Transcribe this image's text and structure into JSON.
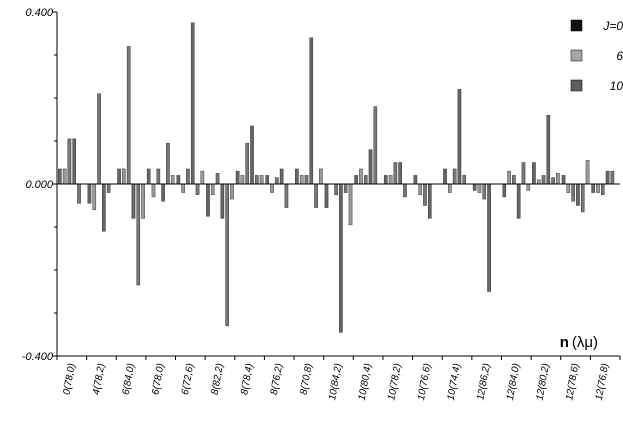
{
  "chart_data": {
    "type": "bar",
    "title": "",
    "xlabel": "n (λμ)",
    "xlabel_parts": {
      "bold": "n",
      "normal": "(λμ)"
    },
    "ylabel": "",
    "ylim": [
      -0.4,
      0.4
    ],
    "yticks": [
      "-0.400",
      "0.000",
      "0.400"
    ],
    "grid": false,
    "legend_position": "top-right",
    "legend_labels": [
      "J=0",
      "6",
      "10"
    ],
    "colors": [
      "#111111",
      "#a6a6a6",
      "#5e5e5e"
    ],
    "categories": [
      "0(78,0)",
      "4(78,2)",
      "6(84,0)",
      "6(78,0)",
      "6(72,6)",
      "8(82,2)",
      "8(78,4)",
      "8(76,2)",
      "8(70,8)",
      "10(84,2)",
      "10(80,4)",
      "10(78,2)",
      "10(76,6)",
      "10(74,4)",
      "12(86,2)",
      "12(84,0)",
      "12(80,2)",
      "12(78,6)",
      "12(76,8)"
    ],
    "series": [
      {
        "name": "J=0",
        "values": [
          0.035,
          -0.045,
          0.035,
          0.035,
          0.02,
          -0.075,
          0.03,
          0.02,
          0.035,
          -0.055,
          0.02,
          0.02,
          0.02,
          0.035,
          -0.015,
          -0.03,
          0.05,
          0.02,
          -0.02
        ]
      },
      {
        "name": "6",
        "values": [
          0.035,
          -0.06,
          0.035,
          -0.03,
          -0.02,
          -0.025,
          0.02,
          -0.02,
          0.02,
          0.0,
          0.035,
          0.02,
          -0.025,
          -0.02,
          -0.02,
          0.03,
          0.01,
          -0.02,
          -0.02
        ]
      },
      {
        "name": "10",
        "values": [
          0.105,
          0.21,
          0.32,
          0.035,
          0.035,
          0.025,
          0.095,
          0.015,
          0.02,
          -0.025,
          0.02,
          0.05,
          -0.05,
          0.035,
          -0.035,
          0.02,
          0.02,
          -0.04,
          -0.025
        ]
      },
      {
        "name": "",
        "values": [
          0.105,
          -0.11,
          -0.08,
          -0.04,
          0.375,
          -0.08,
          0.135,
          0.035,
          0.34,
          -0.345,
          0.08,
          0.05,
          -0.08,
          0.22,
          -0.25,
          -0.08,
          0.16,
          -0.05,
          0.03
        ]
      },
      {
        "name": "",
        "values": [
          -0.045,
          -0.02,
          -0.235,
          0.095,
          -0.025,
          -0.33,
          0.02,
          -0.055,
          -0.055,
          -0.02,
          0.18,
          -0.03,
          0.0,
          0.02,
          0.0,
          0.05,
          0.015,
          -0.065,
          0.03
        ]
      },
      {
        "name": "",
        "values": [
          0.0,
          0.0,
          -0.08,
          0.02,
          0.03,
          -0.035,
          0.02,
          0.0,
          0.035,
          -0.095,
          0.0,
          0.0,
          0.0,
          0.0,
          0.0,
          -0.015,
          0.025,
          0.055,
          0.0
        ]
      }
    ],
    "series_colors": [
      "#666666",
      "#999999",
      "#777777",
      "#666666",
      "#777777",
      "#999999"
    ]
  }
}
